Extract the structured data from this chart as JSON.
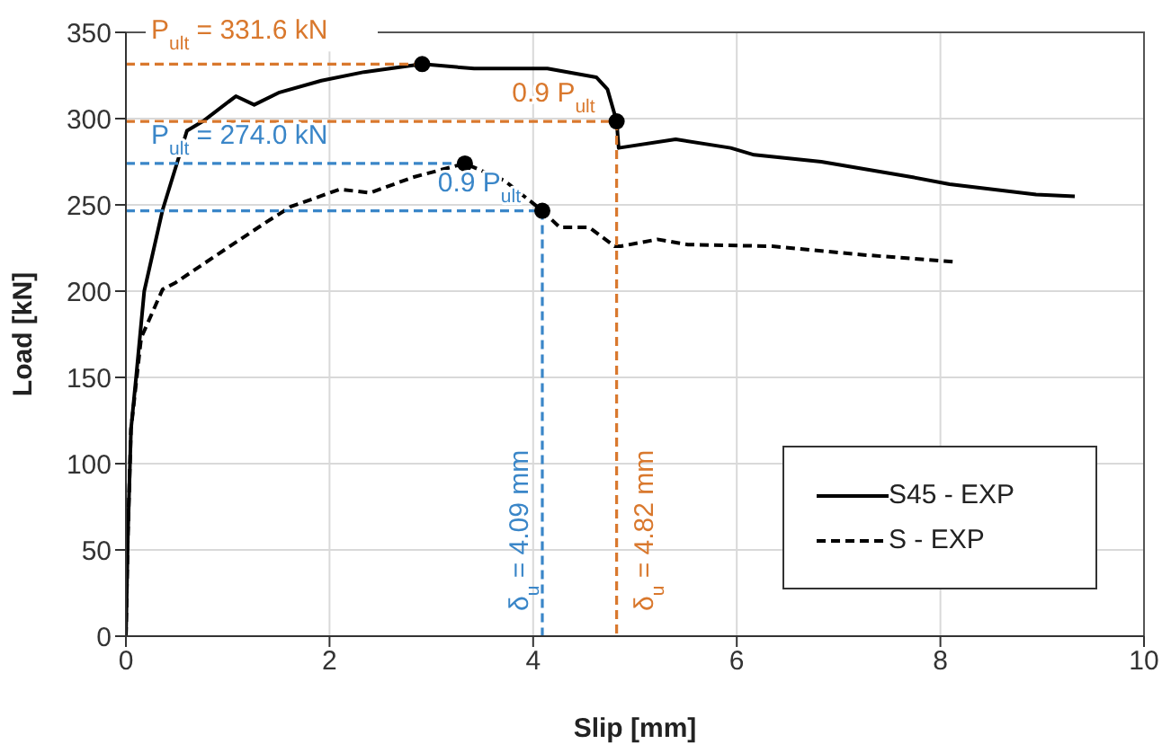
{
  "chart_data": {
    "type": "line",
    "xlabel": "Slip [mm]",
    "ylabel": "Load [kN]",
    "xlim": [
      0,
      10
    ],
    "xticks": [
      0,
      2,
      4,
      6,
      8,
      10
    ],
    "ylim": [
      0,
      350
    ],
    "yticks": [
      0,
      50,
      100,
      150,
      200,
      250,
      300,
      350
    ],
    "grid": true,
    "legend": "bottom right",
    "marker": "none",
    "series": [
      {
        "name": "S45 - EXP",
        "color": "#000000",
        "line_style": "solid",
        "x": [
          0,
          0.02,
          0.05,
          0.1,
          0.18,
          0.36,
          0.6,
          0.77,
          1.08,
          1.26,
          1.5,
          1.92,
          2.34,
          2.91,
          3.42,
          4.14,
          4.62,
          4.73,
          4.82,
          4.84,
          5.4,
          5.94,
          6.17,
          6.83,
          7.73,
          8.09,
          8.94,
          9.32
        ],
        "values": [
          0,
          60,
          120,
          150,
          200,
          247,
          293,
          299,
          313,
          308,
          315,
          322,
          327,
          331.6,
          329,
          329,
          324,
          317,
          298.4,
          283,
          288,
          283,
          279,
          275,
          266,
          262,
          256,
          255
        ]
      },
      {
        "name": "S - EXP",
        "color": "#000000",
        "line_style": "dashed",
        "x": [
          0,
          0.02,
          0.05,
          0.15,
          0.36,
          0.49,
          1.02,
          1.38,
          1.62,
          2.1,
          2.4,
          2.82,
          3.33,
          3.72,
          4.09,
          4.26,
          4.55,
          4.8,
          4.86,
          5.22,
          5.52,
          6.35,
          7.25,
          8.13
        ],
        "values": [
          0,
          60,
          120,
          173,
          201,
          205,
          226,
          240,
          249,
          259,
          257,
          266,
          274,
          264,
          246.6,
          237,
          237,
          226,
          226,
          230,
          227,
          226,
          221,
          217
        ]
      },
      {
        "type": "line",
        "color": "#d9782d",
        "line_style": "dashed",
        "x": [
          0,
          2.91
        ],
        "values": [
          331.6,
          331.6
        ]
      },
      {
        "type": "line",
        "color": "#d9782d",
        "line_style": "dashed",
        "x": [
          0,
          4.82
        ],
        "values": [
          298.4,
          298.4
        ]
      },
      {
        "type": "line",
        "color": "#3a86c8",
        "line_style": "dashed",
        "x": [
          0,
          3.33
        ],
        "values": [
          274,
          274
        ]
      },
      {
        "type": "line",
        "color": "#3a86c8",
        "line_style": "dashed",
        "x": [
          0,
          4.09
        ],
        "values": [
          246.6,
          246.6
        ]
      },
      {
        "type": "line",
        "color": "#3a86c8",
        "line_style": "dashed",
        "x": [
          4.09,
          4.09
        ],
        "values": [
          246.6,
          0
        ]
      },
      {
        "type": "line",
        "color": "#d9782d",
        "line_style": "dashed",
        "x": [
          4.82,
          4.82
        ],
        "values": [
          298.4,
          0
        ]
      },
      {
        "type": "scatter",
        "color": "#000000",
        "marker": "circle",
        "x": [
          2.91,
          4.82,
          3.33,
          4.09
        ],
        "values": [
          331.6,
          298.4,
          274,
          246.6
        ]
      }
    ],
    "annotations": [
      {
        "text": "P$_{ult}$ = 331.6 kN",
        "x": 0,
        "y": 331.6
      },
      {
        "text": "0.9 P$_{ult}$",
        "x": 4.82,
        "y": 298.4
      },
      {
        "text": "P$_{ult}$ = 274.0 kN",
        "x": 0,
        "y": 274
      },
      {
        "text": "0.9 P$_{ult}$",
        "x": 4.09,
        "y": 246.6
      },
      {
        "text": "δ$_{u}$ = 4.09 mm",
        "x": 4.09,
        "y": 0
      },
      {
        "text": "δ$_{u}$ = 4.82 mm",
        "x": 4.82,
        "y": 0
      }
    ]
  }
}
